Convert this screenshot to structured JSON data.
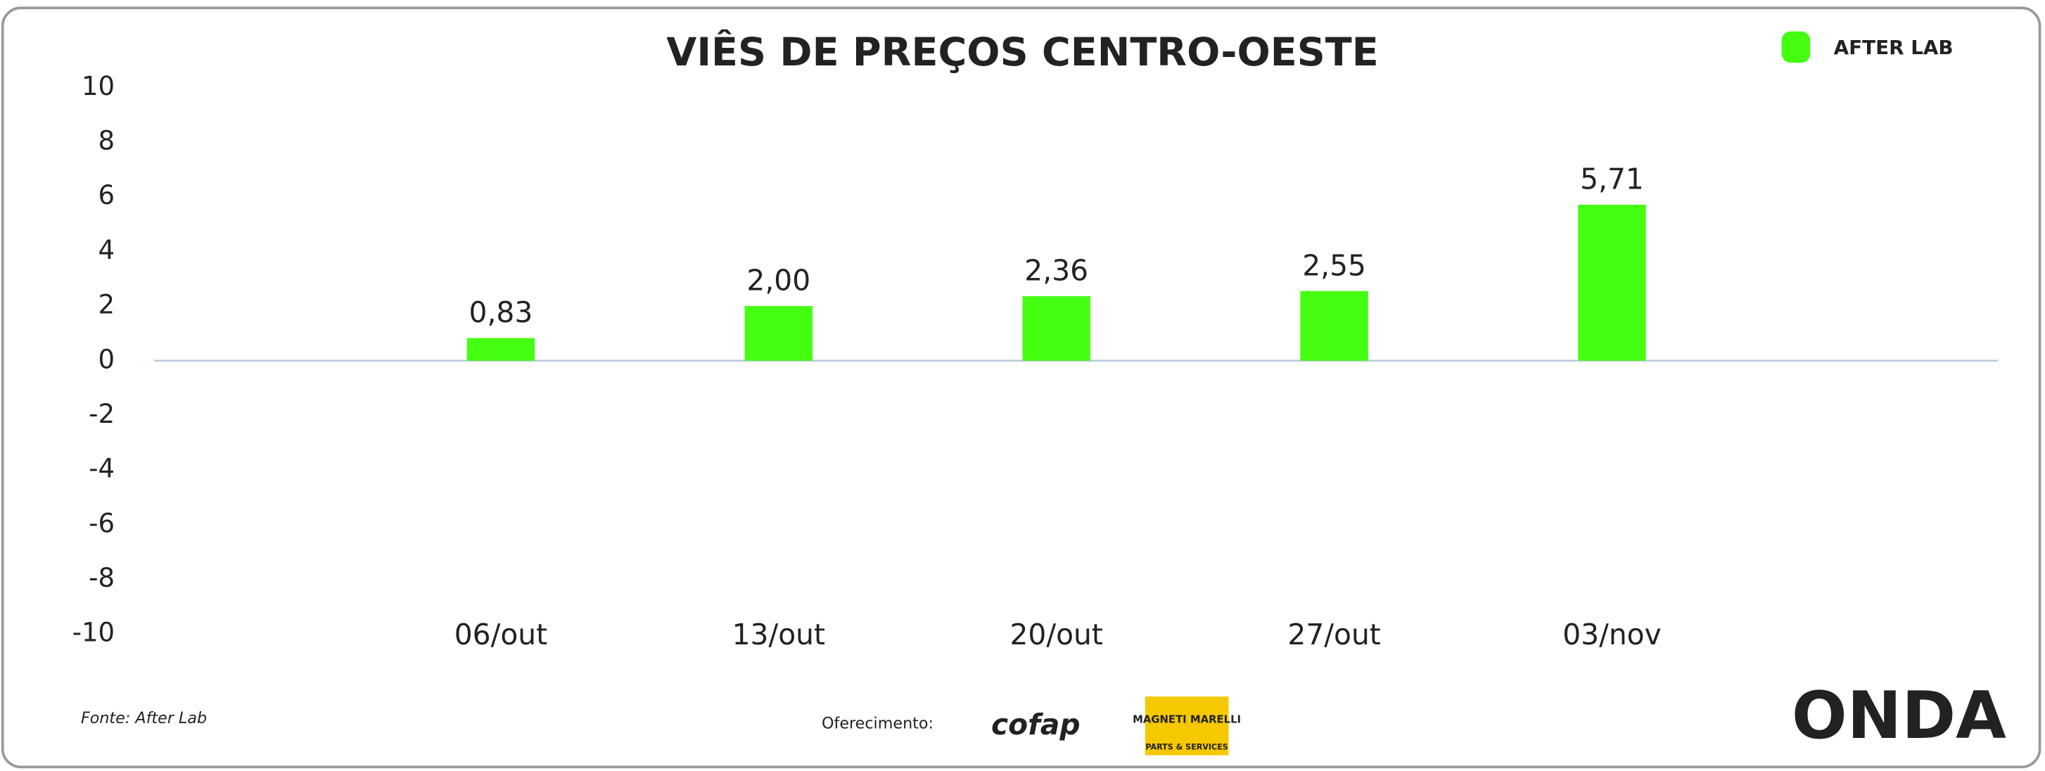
{
  "chart_data": {
    "type": "bar",
    "title": "VIÊS DE PREÇOS CENTRO-OESTE",
    "categories": [
      "06/out",
      "13/out",
      "20/out",
      "27/out",
      "03/nov"
    ],
    "values": [
      0.83,
      2.0,
      2.36,
      2.55,
      5.71
    ],
    "value_labels": [
      "0,83",
      "2,00",
      "2,36",
      "2,55",
      "5,71"
    ],
    "color": "#44ff11",
    "ylim": [
      -10,
      10
    ],
    "yticks": [
      -10,
      -8,
      -6,
      -4,
      -2,
      0,
      2,
      4,
      6,
      8,
      10
    ]
  },
  "brand": "AFTER LAB",
  "source": "Fonte: After Lab",
  "sponsor_label": "Oferecimento:",
  "sponsors": [
    "cofap",
    "MAGNETI MARELLI",
    "PARTS & SERVICES"
  ],
  "footer_logo": "ONDA"
}
